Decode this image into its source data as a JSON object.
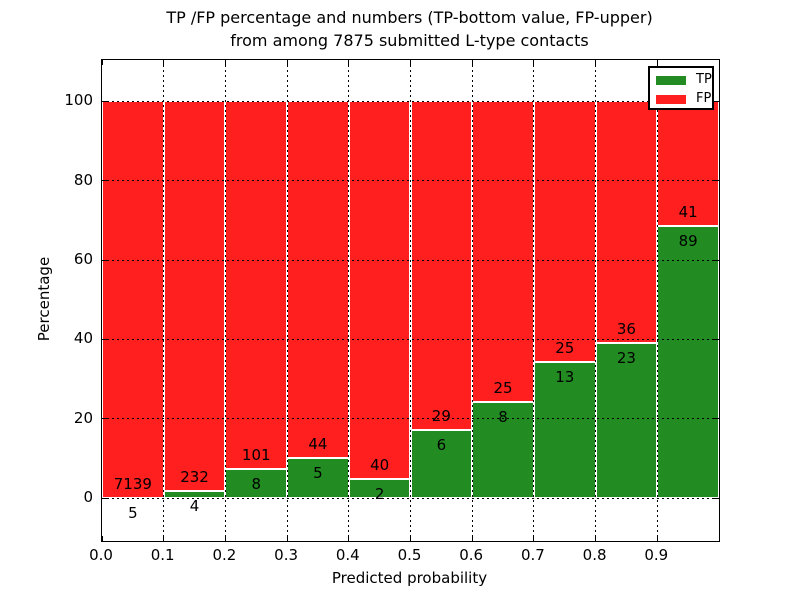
{
  "title": {
    "line1": "TP /FP percentage and numbers (TP-bottom value, FP-upper)",
    "line2": "from among 7875 submitted L-type contacts"
  },
  "axes": {
    "x_label": "Predicted probability",
    "y_label": "Percentage"
  },
  "legend": {
    "position": "upper right",
    "items": [
      {
        "label": "TP",
        "color": "#228b22"
      },
      {
        "label": "FP",
        "color": "#ff1f1f"
      }
    ]
  },
  "chart_data": {
    "type": "bar",
    "stacked": true,
    "title": "TP /FP percentage and numbers (TP-bottom value, FP-upper)\nfrom among 7875 submitted L-type contacts",
    "xlabel": "Predicted probability",
    "ylabel": "Percentage",
    "total_submitted": 7875,
    "bin_edges": [
      0.0,
      0.1,
      0.2,
      0.3,
      0.4,
      0.5,
      0.6,
      0.7,
      0.8,
      0.9,
      1.0
    ],
    "categories": [
      "0.0-0.1",
      "0.1-0.2",
      "0.2-0.3",
      "0.3-0.4",
      "0.4-0.5",
      "0.5-0.6",
      "0.6-0.7",
      "0.7-0.8",
      "0.8-0.9",
      "0.9-1.0"
    ],
    "series": [
      {
        "name": "TP",
        "color": "#228b22",
        "counts": [
          5,
          4,
          8,
          5,
          2,
          6,
          8,
          13,
          23,
          89
        ]
      },
      {
        "name": "FP",
        "color": "#ff1f1f",
        "counts": [
          7139,
          232,
          101,
          44,
          40,
          29,
          25,
          25,
          36,
          41
        ]
      }
    ],
    "tp_percent": [
      0.07,
      1.69,
      7.34,
      10.2,
      4.76,
      17.14,
      24.24,
      34.21,
      38.98,
      68.46
    ],
    "xlim": [
      0.0,
      1.0
    ],
    "ylim": [
      -10.8,
      110.4
    ],
    "x_ticks": [
      0.0,
      0.1,
      0.2,
      0.3,
      0.4,
      0.5,
      0.6,
      0.7,
      0.8,
      0.9
    ],
    "x_tick_labels": [
      "0.0",
      "0.1",
      "0.2",
      "0.3",
      "0.4",
      "0.5",
      "0.6",
      "0.7",
      "0.8",
      "0.9"
    ],
    "y_ticks": [
      0,
      20,
      40,
      60,
      80,
      100
    ],
    "y_tick_labels": [
      "0",
      "20",
      "40",
      "60",
      "80",
      "100"
    ],
    "grid": "dotted",
    "grid_on": true,
    "bar_edge_color": "#ffffff",
    "legend_position": "upper right"
  }
}
